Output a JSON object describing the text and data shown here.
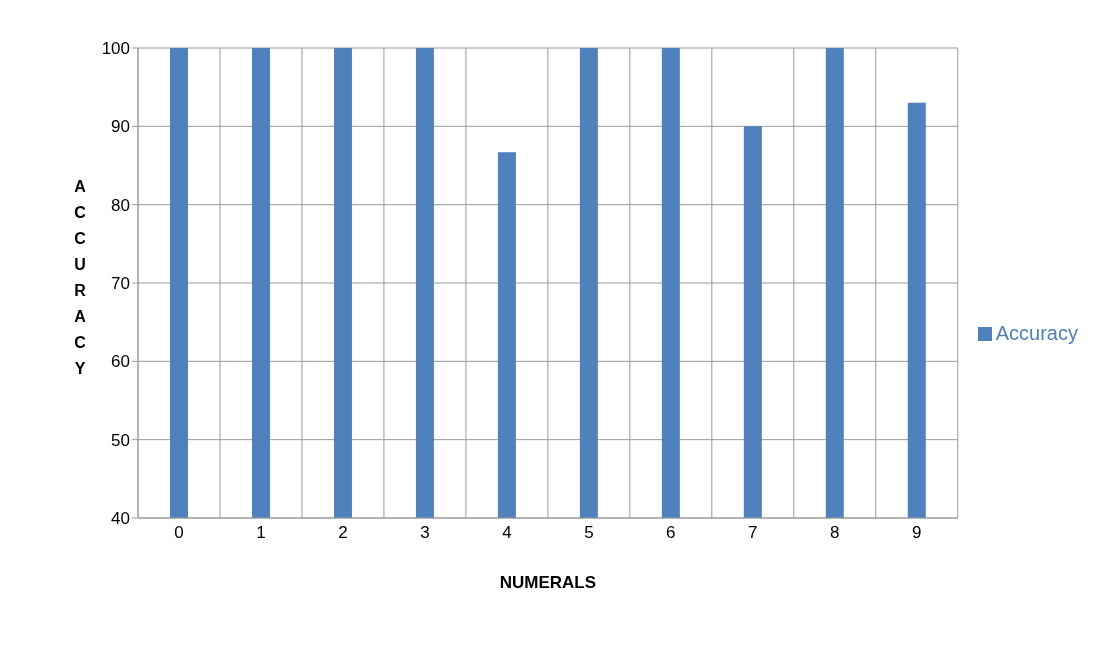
{
  "chart_data": {
    "type": "bar",
    "xlabel": "NUMERALS",
    "ylabel": "ACCURACY",
    "categories": [
      "0",
      "1",
      "2",
      "3",
      "4",
      "5",
      "6",
      "7",
      "8",
      "9"
    ],
    "series": [
      {
        "name": "Accuracy",
        "color": "#4f81bd",
        "values": [
          100,
          100,
          100,
          100,
          86.7,
          100,
          100,
          90,
          100,
          93
        ]
      }
    ],
    "ylim": [
      40,
      100
    ],
    "yticks": [
      40,
      50,
      60,
      70,
      80,
      90,
      100
    ],
    "grid": true,
    "legend": "right"
  }
}
